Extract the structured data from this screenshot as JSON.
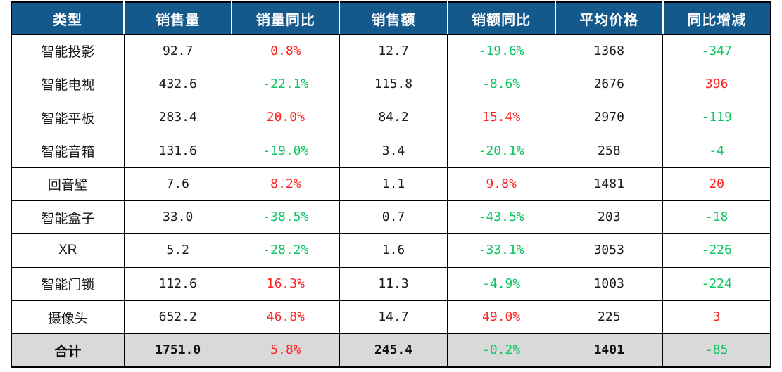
{
  "theme": {
    "header_bg": "#14598C",
    "header_text": "#FFFFFF",
    "increase_color": "#FF2222",
    "decrease_color": "#0FC464",
    "total_row_bg": "#D9D9D9",
    "grid_color": "#000000",
    "body_text": "#1A1A1A"
  },
  "table": {
    "headers": [
      "类型",
      "销售量",
      "销量同比",
      "销售额",
      "销额同比",
      "平均价格",
      "同比增减"
    ],
    "rows": [
      {
        "id": "smart-projector",
        "values": [
          "智能投影",
          "92.7",
          "0.8%",
          "12.7",
          "-19.6%",
          "1368",
          "-347"
        ],
        "tones": [
          "plain",
          "plain",
          "up",
          "plain",
          "down",
          "plain",
          "down"
        ]
      },
      {
        "id": "smart-tv",
        "values": [
          "智能电视",
          "432.6",
          "-22.1%",
          "115.8",
          "-8.6%",
          "2676",
          "396"
        ],
        "tones": [
          "plain",
          "plain",
          "down",
          "plain",
          "down",
          "plain",
          "up"
        ]
      },
      {
        "id": "smart-tablet",
        "values": [
          "智能平板",
          "283.4",
          "20.0%",
          "84.2",
          "15.4%",
          "2970",
          "-119"
        ],
        "tones": [
          "plain",
          "plain",
          "up",
          "plain",
          "up",
          "plain",
          "down"
        ]
      },
      {
        "id": "smart-speaker",
        "values": [
          "智能音箱",
          "131.6",
          "-19.0%",
          "3.4",
          "-20.1%",
          "258",
          "-4"
        ],
        "tones": [
          "plain",
          "plain",
          "down",
          "plain",
          "down",
          "plain",
          "down"
        ]
      },
      {
        "id": "soundbar",
        "values": [
          "回音壁",
          "7.6",
          "8.2%",
          "1.1",
          "9.8%",
          "1481",
          "20"
        ],
        "tones": [
          "plain",
          "plain",
          "up",
          "plain",
          "up",
          "plain",
          "up"
        ]
      },
      {
        "id": "smart-box",
        "values": [
          "智能盒子",
          "33.0",
          "-38.5%",
          "0.7",
          "-43.5%",
          "203",
          "-18"
        ],
        "tones": [
          "plain",
          "plain",
          "down",
          "plain",
          "down",
          "plain",
          "down"
        ]
      },
      {
        "id": "xr",
        "values": [
          "XR",
          "5.2",
          "-28.2%",
          "1.6",
          "-33.1%",
          "3053",
          "-226"
        ],
        "tones": [
          "plain",
          "plain",
          "down",
          "plain",
          "down",
          "plain",
          "down"
        ]
      },
      {
        "id": "smart-lock",
        "values": [
          "智能门锁",
          "112.6",
          "16.3%",
          "11.3",
          "-4.9%",
          "1003",
          "-224"
        ],
        "tones": [
          "plain",
          "plain",
          "up",
          "plain",
          "down",
          "plain",
          "down"
        ]
      },
      {
        "id": "camera",
        "values": [
          "摄像头",
          "652.2",
          "46.8%",
          "14.7",
          "49.0%",
          "225",
          "3"
        ],
        "tones": [
          "plain",
          "plain",
          "up",
          "plain",
          "up",
          "plain",
          "up"
        ]
      },
      {
        "id": "total",
        "values": [
          "合计",
          "1751.0",
          "5.8%",
          "245.4",
          "-0.2%",
          "1401",
          "-85"
        ],
        "tones": [
          "bold",
          "bold",
          "up",
          "bold",
          "down",
          "bold",
          "down"
        ]
      }
    ]
  }
}
